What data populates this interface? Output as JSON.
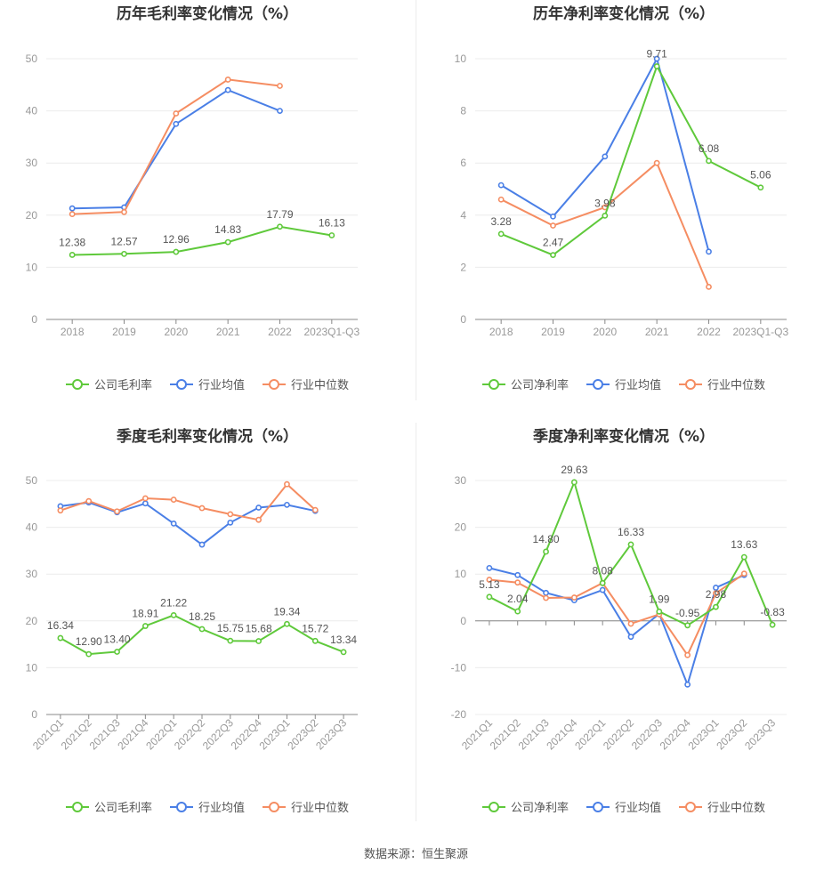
{
  "footer": {
    "source": "数据来源：恒生聚源"
  },
  "chart_data": [
    {
      "type": "line",
      "title": "历年毛利率变化情况（%）",
      "categories": [
        "2018",
        "2019",
        "2020",
        "2021",
        "2022",
        "2023Q1-Q3"
      ],
      "ylim": [
        0,
        50
      ],
      "yticks": [
        0,
        10,
        20,
        30,
        40,
        50
      ],
      "grid": true,
      "legend": "bottom",
      "series": [
        {
          "name": "公司毛利率",
          "color": "#5fc93b",
          "labels": true,
          "values": [
            12.38,
            12.57,
            12.96,
            14.83,
            17.79,
            16.13
          ],
          "value_labels": [
            "12.38",
            "12.57",
            "12.96",
            "14.83",
            "17.79",
            "16.13"
          ]
        },
        {
          "name": "行业均值",
          "color": "#4a7fe6",
          "values": [
            21.3,
            21.5,
            37.5,
            44.0,
            40.0,
            null
          ]
        },
        {
          "name": "行业中位数",
          "color": "#f58d62",
          "values": [
            20.2,
            20.6,
            39.5,
            46.0,
            44.8,
            null
          ]
        }
      ]
    },
    {
      "type": "line",
      "title": "历年净利率变化情况（%）",
      "categories": [
        "2018",
        "2019",
        "2020",
        "2021",
        "2022",
        "2023Q1-Q3"
      ],
      "ylim": [
        0,
        10
      ],
      "yticks": [
        0,
        2,
        4,
        6,
        8,
        10
      ],
      "grid": true,
      "legend": "bottom",
      "series": [
        {
          "name": "公司净利率",
          "color": "#5fc93b",
          "labels": true,
          "values": [
            3.28,
            2.47,
            3.98,
            9.71,
            6.08,
            5.06
          ],
          "value_labels": [
            "3.28",
            "2.47",
            "3.98",
            "9.71",
            "6.08",
            "5.06"
          ]
        },
        {
          "name": "行业均值",
          "color": "#4a7fe6",
          "values": [
            5.15,
            3.95,
            6.25,
            10.0,
            2.6,
            null
          ]
        },
        {
          "name": "行业中位数",
          "color": "#f58d62",
          "values": [
            4.6,
            3.6,
            4.3,
            6.0,
            1.25,
            null
          ]
        }
      ]
    },
    {
      "type": "line",
      "title": "季度毛利率变化情况（%）",
      "categories": [
        "2021Q1",
        "2021Q2",
        "2021Q3",
        "2021Q4",
        "2022Q1",
        "2022Q2",
        "2022Q3",
        "2022Q4",
        "2023Q1",
        "2023Q2",
        "2023Q3"
      ],
      "ylim": [
        0,
        50
      ],
      "yticks": [
        0,
        10,
        20,
        30,
        40,
        50
      ],
      "grid": true,
      "legend": "bottom",
      "series": [
        {
          "name": "公司毛利率",
          "color": "#5fc93b",
          "labels": true,
          "values": [
            16.34,
            12.9,
            13.4,
            18.91,
            21.22,
            18.25,
            15.75,
            15.68,
            19.34,
            15.72,
            13.34
          ],
          "value_labels": [
            "16.34",
            "12.90",
            "13.40",
            "18.91",
            "21.22",
            "18.25",
            "15.75",
            "15.68",
            "19.34",
            "15.72",
            "13.34"
          ]
        },
        {
          "name": "行业均值",
          "color": "#4a7fe6",
          "values": [
            44.5,
            45.3,
            43.2,
            45.1,
            40.8,
            36.3,
            41.0,
            44.2,
            44.8,
            43.5,
            null
          ]
        },
        {
          "name": "行业中位数",
          "color": "#f58d62",
          "values": [
            43.6,
            45.6,
            43.4,
            46.2,
            45.9,
            44.1,
            42.8,
            41.6,
            49.2,
            43.7,
            null
          ]
        }
      ]
    },
    {
      "type": "line",
      "title": "季度净利率变化情况（%）",
      "categories": [
        "2021Q1",
        "2021Q2",
        "2021Q3",
        "2021Q4",
        "2022Q1",
        "2022Q2",
        "2022Q3",
        "2022Q4",
        "2023Q1",
        "2023Q2",
        "2023Q3"
      ],
      "ylim": [
        -20,
        30
      ],
      "yticks": [
        -20,
        -10,
        0,
        10,
        20,
        30
      ],
      "grid": true,
      "legend": "bottom",
      "series": [
        {
          "name": "公司净利率",
          "color": "#5fc93b",
          "labels": true,
          "values": [
            5.13,
            2.04,
            14.8,
            29.63,
            8.08,
            16.33,
            1.99,
            -0.95,
            2.98,
            13.63,
            -0.83
          ],
          "value_labels": [
            "5.13",
            "2.04",
            "14.80",
            "29.63",
            "8.08",
            "16.33",
            "1.99",
            "-0.95",
            "2.98",
            "13.63",
            "-0.83"
          ]
        },
        {
          "name": "行业均值",
          "color": "#4a7fe6",
          "values": [
            11.3,
            9.8,
            6.0,
            4.4,
            6.6,
            -3.4,
            1.5,
            -13.6,
            7.1,
            9.8,
            null
          ]
        },
        {
          "name": "行业中位数",
          "color": "#f58d62",
          "values": [
            8.8,
            8.2,
            4.9,
            5.0,
            8.1,
            -0.6,
            1.4,
            -7.3,
            5.9,
            10.1,
            null
          ]
        }
      ]
    }
  ]
}
